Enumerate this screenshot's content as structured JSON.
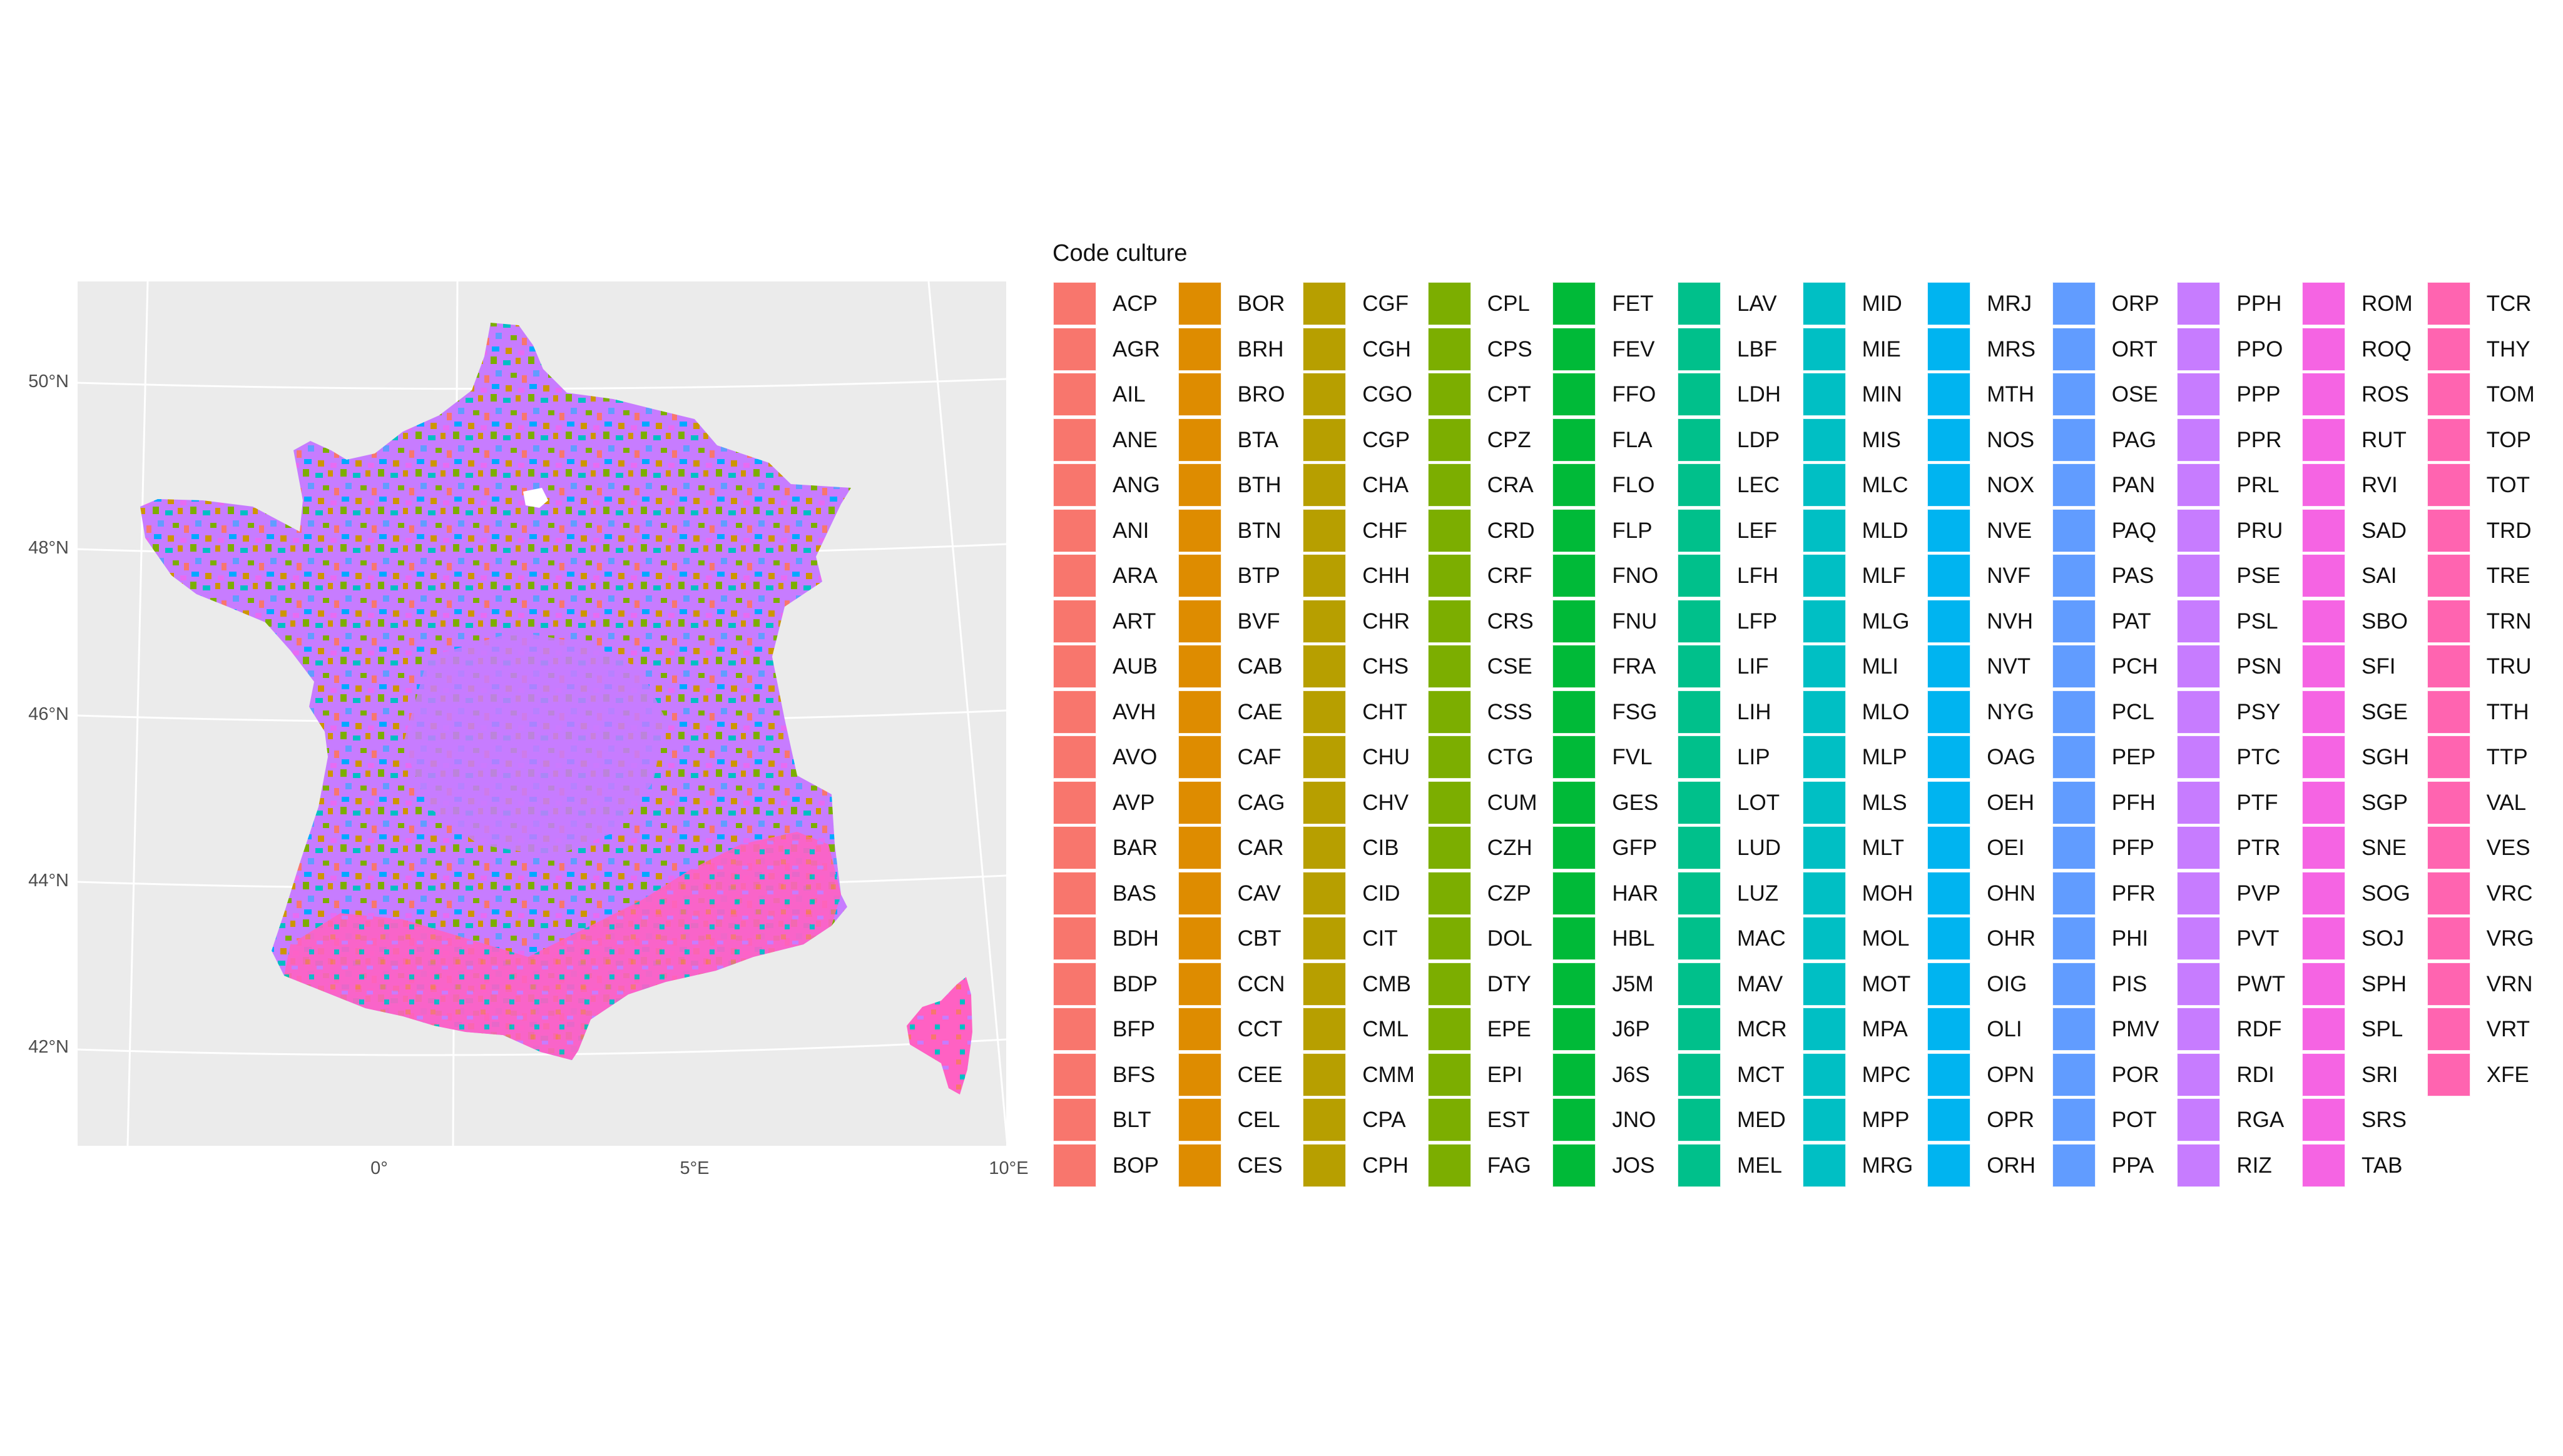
{
  "map": {
    "panel_background": "#ebebeb",
    "grid_color": "#ffffff",
    "latitude_labels": [
      "50°N",
      "48°N",
      "46°N",
      "44°N",
      "42°N"
    ],
    "longitude_labels": [
      "0°",
      "5°E",
      "10°E"
    ],
    "dominant_colors": [
      "#c77cff",
      "#7cae00",
      "#00bfc4",
      "#f8766d",
      "#e76bf3",
      "#00a9ff",
      "#ff61c3",
      "#cd9600"
    ]
  },
  "legend": {
    "title": "Code culture",
    "columns": [
      {
        "color": "#f8766d",
        "items": [
          "ACP",
          "AGR",
          "AIL",
          "ANE",
          "ANG",
          "ANI",
          "ARA",
          "ART",
          "AUB",
          "AVH",
          "AVO",
          "AVP",
          "BAR",
          "BAS",
          "BDH",
          "BDP",
          "BFP",
          "BFS",
          "BLT",
          "BOP"
        ]
      },
      {
        "color": "#de8c00",
        "items": [
          "BOR",
          "BRH",
          "BRO",
          "BTA",
          "BTH",
          "BTN",
          "BTP",
          "BVF",
          "CAB",
          "CAE",
          "CAF",
          "CAG",
          "CAR",
          "CAV",
          "CBT",
          "CCN",
          "CCT",
          "CEE",
          "CEL",
          "CES"
        ]
      },
      {
        "color": "#b79f00",
        "items": [
          "CGF",
          "CGH",
          "CGO",
          "CGP",
          "CHA",
          "CHF",
          "CHH",
          "CHR",
          "CHS",
          "CHT",
          "CHU",
          "CHV",
          "CIB",
          "CID",
          "CIT",
          "CMB",
          "CML",
          "CMM",
          "CPA",
          "CPH"
        ]
      },
      {
        "color": "#7cae00",
        "items": [
          "CPL",
          "CPS",
          "CPT",
          "CPZ",
          "CRA",
          "CRD",
          "CRF",
          "CRS",
          "CSE",
          "CSS",
          "CTG",
          "CUM",
          "CZH",
          "CZP",
          "DOL",
          "DTY",
          "EPE",
          "EPI",
          "EST",
          "FAG"
        ]
      },
      {
        "color": "#00ba38",
        "items": [
          "FET",
          "FEV",
          "FFO",
          "FLA",
          "FLO",
          "FLP",
          "FNO",
          "FNU",
          "FRA",
          "FSG",
          "FVL",
          "GES",
          "GFP",
          "HAR",
          "HBL",
          "J5M",
          "J6P",
          "J6S",
          "JNO",
          "JOS"
        ]
      },
      {
        "color": "#00c08b",
        "items": [
          "LAV",
          "LBF",
          "LDH",
          "LDP",
          "LEC",
          "LEF",
          "LFH",
          "LFP",
          "LIF",
          "LIH",
          "LIP",
          "LOT",
          "LUD",
          "LUZ",
          "MAC",
          "MAV",
          "MCR",
          "MCT",
          "MED",
          "MEL"
        ]
      },
      {
        "color": "#00bfc4",
        "items": [
          "MID",
          "MIE",
          "MIN",
          "MIS",
          "MLC",
          "MLD",
          "MLF",
          "MLG",
          "MLI",
          "MLO",
          "MLP",
          "MLS",
          "MLT",
          "MOH",
          "MOL",
          "MOT",
          "MPA",
          "MPC",
          "MPP",
          "MRG"
        ]
      },
      {
        "color": "#00b4f0",
        "items": [
          "MRJ",
          "MRS",
          "MTH",
          "NOS",
          "NOX",
          "NVE",
          "NVF",
          "NVH",
          "NVT",
          "NYG",
          "OAG",
          "OEH",
          "OEI",
          "OHN",
          "OHR",
          "OIG",
          "OLI",
          "OPN",
          "OPR",
          "ORH"
        ]
      },
      {
        "color": "#619cff",
        "items": [
          "ORP",
          "ORT",
          "OSE",
          "PAG",
          "PAN",
          "PAQ",
          "PAS",
          "PAT",
          "PCH",
          "PCL",
          "PEP",
          "PFH",
          "PFP",
          "PFR",
          "PHI",
          "PIS",
          "PMV",
          "POR",
          "POT",
          "PPA"
        ]
      },
      {
        "color": "#c77cff",
        "items": [
          "PPH",
          "PPO",
          "PPP",
          "PPR",
          "PRL",
          "PRU",
          "PSE",
          "PSL",
          "PSN",
          "PSY",
          "PTC",
          "PTF",
          "PTR",
          "PVP",
          "PVT",
          "PWT",
          "RDF",
          "RDI",
          "RGA",
          "RIZ"
        ]
      },
      {
        "color": "#f564e3",
        "items": [
          "ROM",
          "ROQ",
          "ROS",
          "RUT",
          "RVI",
          "SAD",
          "SAI",
          "SBO",
          "SFI",
          "SGE",
          "SGH",
          "SGP",
          "SNE",
          "SOG",
          "SOJ",
          "SPH",
          "SPL",
          "SRI",
          "SRS",
          "TAB"
        ]
      },
      {
        "color": "#ff64b0",
        "items": [
          "TCR",
          "THY",
          "TOM",
          "TOP",
          "TOT",
          "TRD",
          "TRE",
          "TRN",
          "TRU",
          "TTH",
          "TTP",
          "VAL",
          "VES",
          "VRC",
          "VRG",
          "VRN",
          "VRT",
          "XFE"
        ]
      }
    ]
  }
}
